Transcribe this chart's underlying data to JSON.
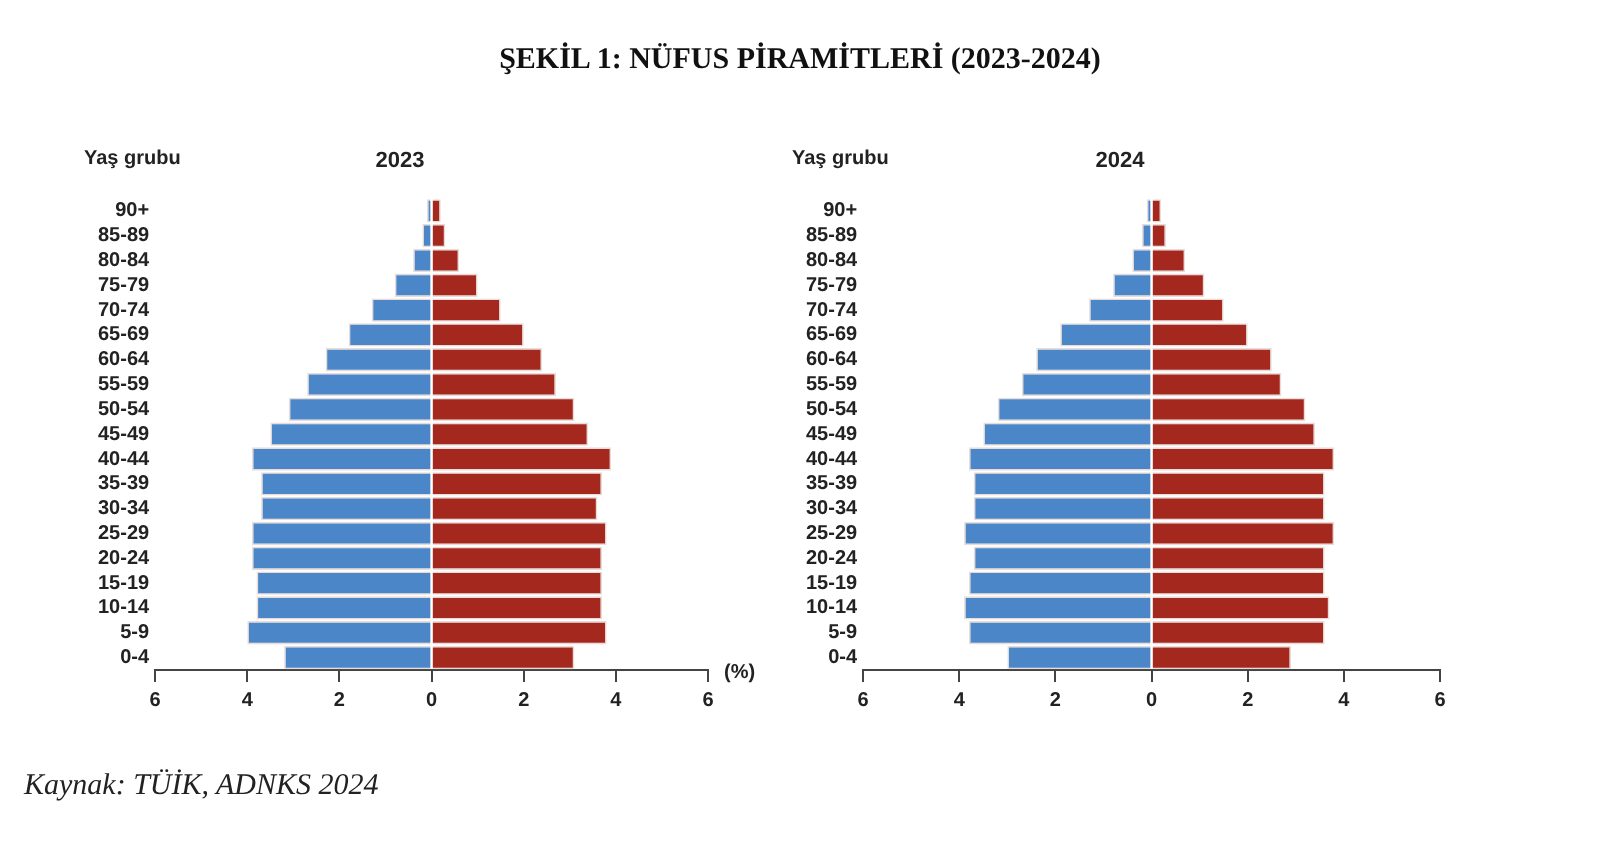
{
  "chart_data": [
    {
      "type": "bar",
      "title": "ŞEKİL 1: NÜFUS PİRAMİTLERİ (2023-2024)",
      "subtitle": "2023",
      "ylabel": "Yaş grubu",
      "xlabel": "(%)",
      "annotations": [
        "Kaynak: TÜİK, ADNKS 2024"
      ],
      "orientation": "horizontal",
      "stacked": true,
      "grid": false,
      "legend": false,
      "categories": [
        "90+",
        "85-89",
        "80-84",
        "75-79",
        "70-74",
        "65-69",
        "60-64",
        "55-59",
        "50-54",
        "45-49",
        "40-44",
        "35-39",
        "30-34",
        "25-29",
        "20-24",
        "15-19",
        "10-14",
        "5-9",
        "0-4"
      ],
      "series": [
        {
          "color": "#4a86c8",
          "values": [
            -0.1,
            -0.2,
            -0.4,
            -0.8,
            -1.3,
            -1.8,
            -2.3,
            -2.7,
            -3.1,
            -3.5,
            -3.9,
            -3.7,
            -3.7,
            -3.9,
            -3.9,
            -3.8,
            -3.8,
            -4.0,
            -3.2
          ]
        },
        {
          "color": "#a5281f",
          "values": [
            0.2,
            0.3,
            0.6,
            1.0,
            1.5,
            2.0,
            2.4,
            2.7,
            3.1,
            3.4,
            3.9,
            3.7,
            3.6,
            3.8,
            3.7,
            3.7,
            3.7,
            3.8,
            3.1
          ]
        }
      ],
      "xlim": [
        -6,
        6
      ],
      "xticks": [
        {
          "value": -6,
          "label": "6"
        },
        {
          "value": -4,
          "label": "4"
        },
        {
          "value": -2,
          "label": "2"
        },
        0,
        2,
        4,
        6
      ]
    },
    {
      "type": "bar",
      "title": "2024",
      "ylabel": "Yaş grubu",
      "orientation": "horizontal",
      "stacked": true,
      "grid": false,
      "legend": false,
      "categories": [
        "90+",
        "85-89",
        "80-84",
        "75-79",
        "70-74",
        "65-69",
        "60-64",
        "55-59",
        "50-54",
        "45-49",
        "40-44",
        "35-39",
        "30-34",
        "25-29",
        "20-24",
        "15-19",
        "10-14",
        "5-9",
        "0-4"
      ],
      "series": [
        {
          "color": "#4a86c8",
          "values": [
            -0.1,
            -0.2,
            -0.4,
            -0.8,
            -1.3,
            -1.9,
            -2.4,
            -2.7,
            -3.2,
            -3.5,
            -3.8,
            -3.7,
            -3.7,
            -3.9,
            -3.7,
            -3.8,
            -3.9,
            -3.8,
            -3.0
          ]
        },
        {
          "color": "#a5281f",
          "values": [
            0.2,
            0.3,
            0.7,
            1.1,
            1.5,
            2.0,
            2.5,
            2.7,
            3.2,
            3.4,
            3.8,
            3.6,
            3.6,
            3.8,
            3.6,
            3.6,
            3.7,
            3.6,
            2.9
          ]
        }
      ],
      "xlim": [
        -6,
        6
      ],
      "xticks": [
        {
          "value": -6,
          "label": "6"
        },
        {
          "value": -4,
          "label": "4"
        },
        {
          "value": -2,
          "label": "2"
        },
        0,
        2,
        4,
        6
      ]
    }
  ]
}
